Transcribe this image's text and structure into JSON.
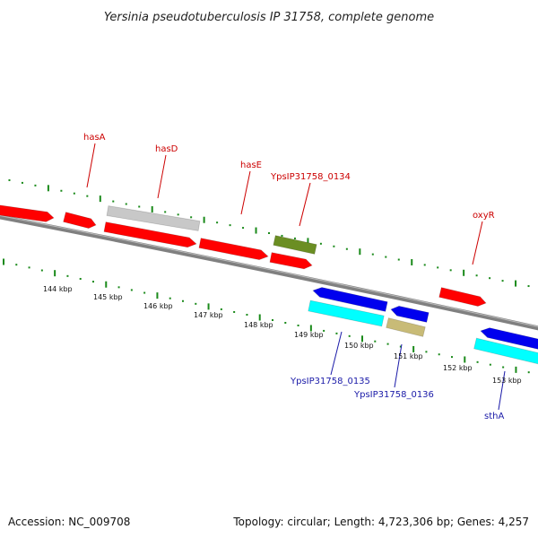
{
  "title": "Yersinia pseudotuberculosis IP 31758, complete genome",
  "accession": "Accession: NC_009708",
  "topology": "Topology: circular; Length: 4,723,306 bp; Genes: 4,257",
  "colors": {
    "forward_cds": "#ff0000",
    "forward_misc": "#c8c8c8",
    "forward_other": "#6b8e23",
    "reverse_cds": "#0000ee",
    "reverse_gene": "#00ffff",
    "reverse_other": "#c8bb77",
    "backbone": "#808080",
    "tick": "#1a8a1a"
  },
  "kbp_labels": [
    "144 kbp",
    "145 kbp",
    "146 kbp",
    "147 kbp",
    "148 kbp",
    "149 kbp",
    "150 kbp",
    "151 kbp",
    "152 kbp",
    "153 kbp"
  ],
  "gene_labels_forward": [
    "hasA",
    "hasD",
    "hasE",
    "YpsIP31758_0134",
    "oxyR"
  ],
  "gene_labels_reverse": [
    "YpsIP31758_0135",
    "YpsIP31758_0136",
    "sthA"
  ]
}
